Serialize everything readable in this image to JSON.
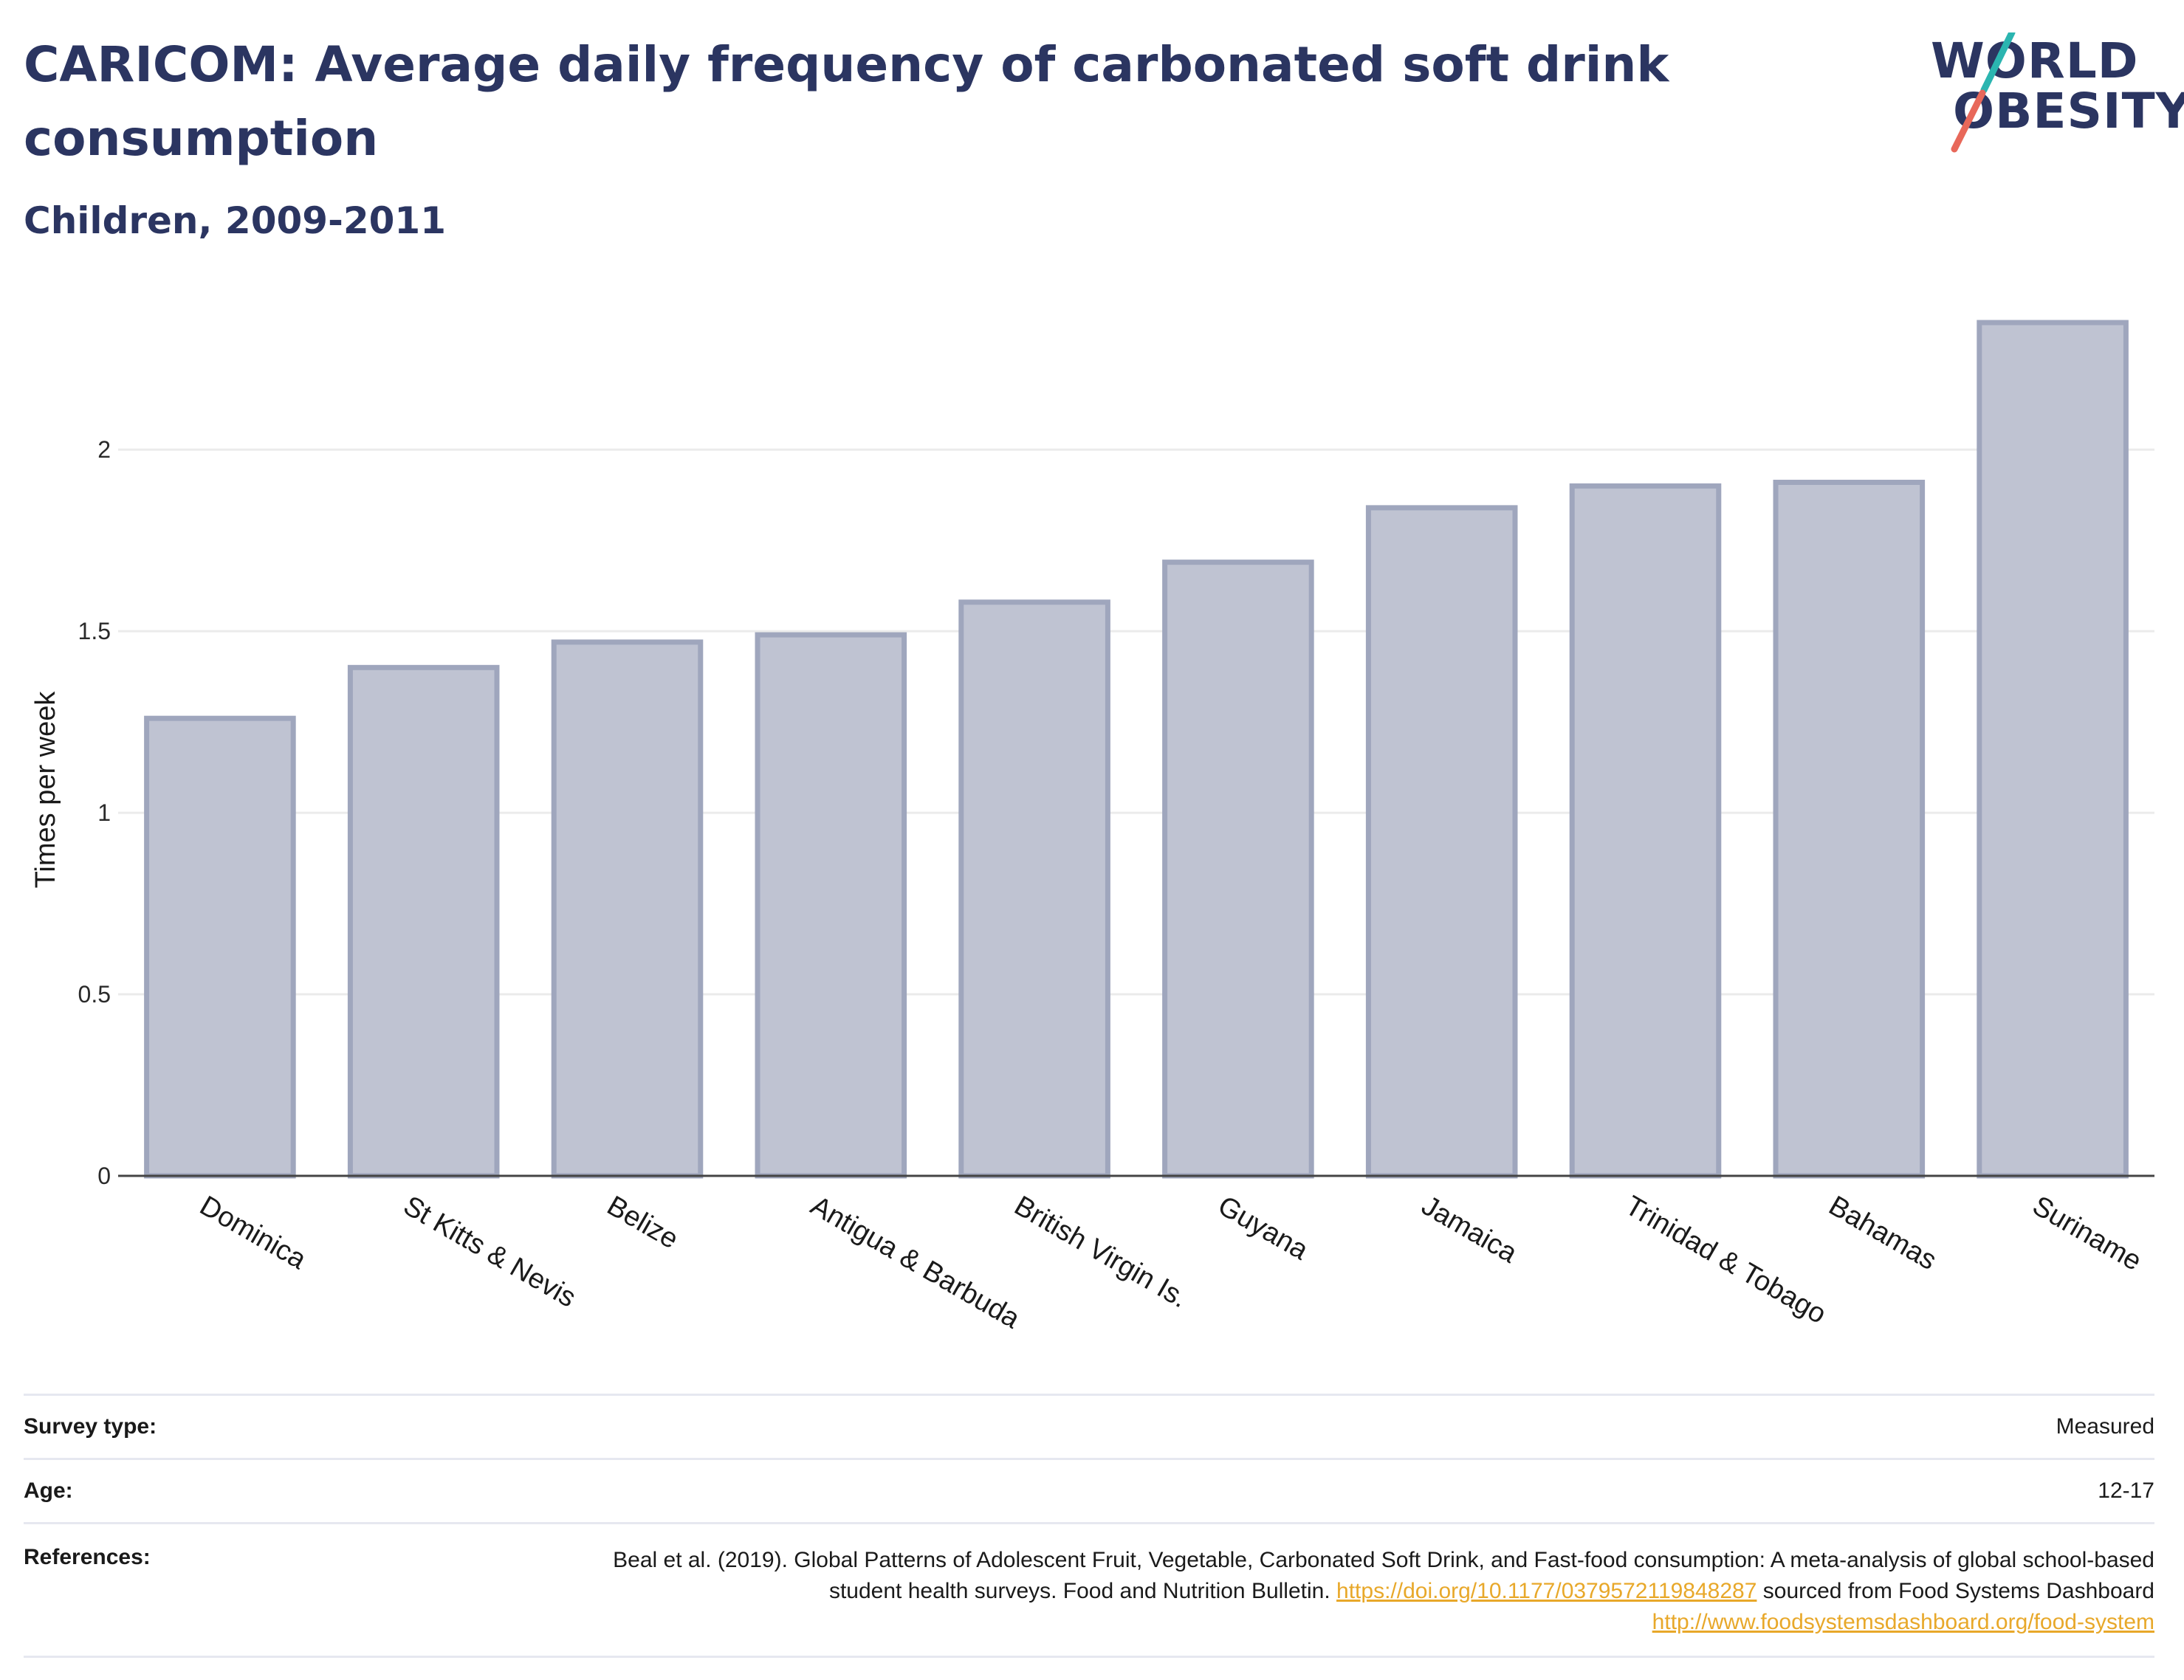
{
  "header": {
    "title": "CARICOM: Average daily frequency of carbonated soft drink consumption",
    "subtitle": "Children, 2009-2011",
    "logo": {
      "line1": "WORLD",
      "line2": "OBESITY",
      "accent_teal": "#2bb5b0",
      "accent_red": "#e8685a"
    }
  },
  "chart_data": {
    "type": "bar",
    "categories": [
      "Dominica",
      "St Kitts & Nevis",
      "Belize",
      "Antigua & Barbuda",
      "British Virgin Is.",
      "Guyana",
      "Jamaica",
      "Trinidad & Tobago",
      "Bahamas",
      "Suriname"
    ],
    "values": [
      1.26,
      1.4,
      1.47,
      1.49,
      1.58,
      1.69,
      1.84,
      1.9,
      1.91,
      2.35
    ],
    "ylabel": "Times per week",
    "ylim": [
      0,
      2.35
    ],
    "yticks": [
      0,
      0.5,
      1,
      1.5,
      2
    ],
    "ytick_labels": [
      "0",
      "0.5",
      "1",
      "1.5",
      "2"
    ],
    "grid": true,
    "colors": {
      "bar_fill": "#bfc3d2",
      "bar_stroke": "#9fa6bd",
      "grid": "#ebebeb"
    }
  },
  "footer": {
    "survey_label": "Survey type:",
    "survey_value": "Measured",
    "age_label": "Age:",
    "age_value": "12-17",
    "refs_label": "References:",
    "refs_text1": "Beal et al. (2019). Global Patterns of Adolescent Fruit, Vegetable, Carbonated Soft Drink, and Fast-food consumption: A meta-analysis of global school-based student health surveys. Food and Nutrition Bulletin.",
    "refs_link1": "https://doi.org/10.1177/0379572119848287",
    "refs_text2": "sourced from Food Systems Dashboard",
    "refs_link2": "http://www.foodsystemsdashboard.org/food-system"
  }
}
